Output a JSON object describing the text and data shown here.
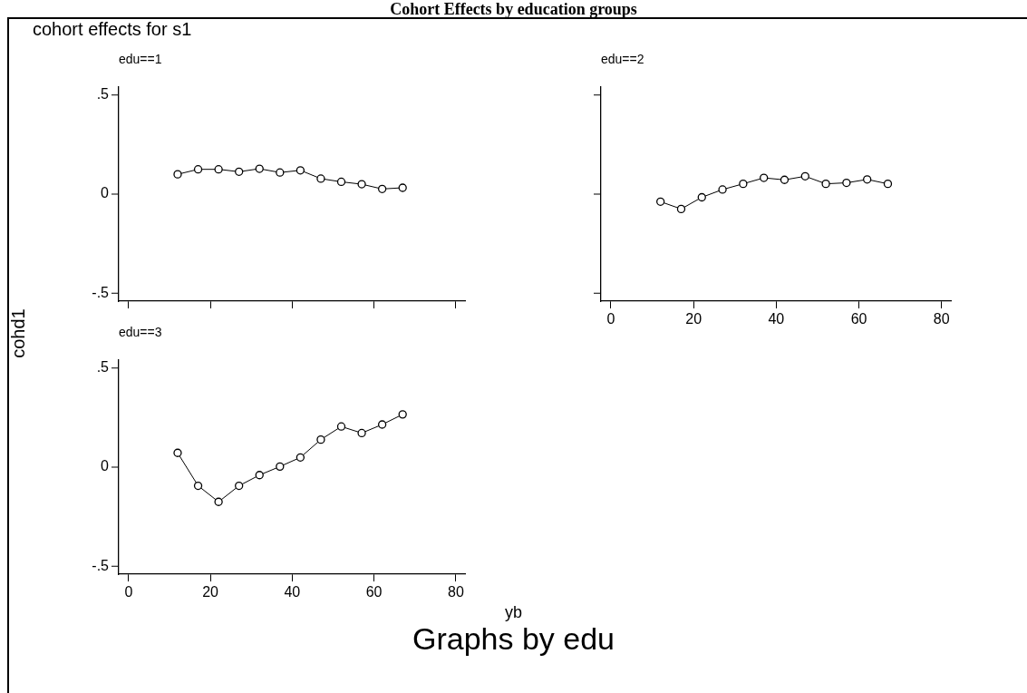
{
  "chart_data": [
    {
      "type": "line",
      "title": "edu==1",
      "ylabel": "cohd1",
      "annotations": [
        "Cohort Effects by education groups",
        "cohort effects for s1",
        "Graphs by edu"
      ],
      "x": [
        12,
        17,
        22,
        27,
        32,
        37,
        42,
        47,
        52,
        57,
        62,
        67
      ],
      "series": [
        {
          "color": "#000000",
          "values": [
            0.1,
            0.125,
            0.125,
            0.113,
            0.128,
            0.109,
            0.12,
            0.078,
            0.062,
            0.05,
            0.026,
            0.032
          ]
        }
      ],
      "xlim": [
        -2.4,
        82.4
      ],
      "xticks": [
        0,
        20,
        40,
        60,
        80
      ],
      "ylim": [
        -0.54,
        0.54
      ],
      "yticks": [
        {
          "value": -0.5,
          "label": "-.5"
        },
        0,
        {
          "value": 0.5,
          "label": ".5"
        }
      ],
      "tick_labels": "y",
      "marker": "circle"
    },
    {
      "type": "line",
      "title": "edu==2",
      "x": [
        12,
        17,
        22,
        27,
        32,
        37,
        42,
        47,
        52,
        57,
        62,
        67
      ],
      "series": [
        {
          "color": "#000000",
          "values": [
            -0.038,
            -0.075,
            -0.016,
            0.023,
            0.052,
            0.082,
            0.072,
            0.09,
            0.052,
            0.057,
            0.074,
            0.052
          ]
        }
      ],
      "xlim": [
        -2.4,
        82.4
      ],
      "xticks": [
        0,
        20,
        40,
        60,
        80
      ],
      "ylim": [
        -0.54,
        0.54
      ],
      "yticks": [
        {
          "value": -0.5,
          "label": null
        },
        {
          "value": 0,
          "label": null
        },
        {
          "value": 0.5,
          "label": null
        }
      ],
      "tick_labels": "x",
      "marker": "circle"
    },
    {
      "type": "line",
      "title": "edu==3",
      "xlabel": "yb",
      "x": [
        12,
        17,
        22,
        27,
        32,
        37,
        42,
        47,
        52,
        57,
        62,
        67
      ],
      "series": [
        {
          "color": "#000000",
          "values": [
            0.072,
            -0.094,
            -0.175,
            -0.094,
            -0.04,
            0.003,
            0.049,
            0.139,
            0.205,
            0.172,
            0.215,
            0.266
          ]
        }
      ],
      "xlim": [
        -2.4,
        82.4
      ],
      "xticks": [
        0,
        20,
        40,
        60,
        80
      ],
      "ylim": [
        -0.54,
        0.54
      ],
      "yticks": [
        {
          "value": -0.5,
          "label": "-.5"
        },
        0,
        {
          "value": 0.5,
          "label": ".5"
        }
      ],
      "marker": "circle"
    }
  ]
}
